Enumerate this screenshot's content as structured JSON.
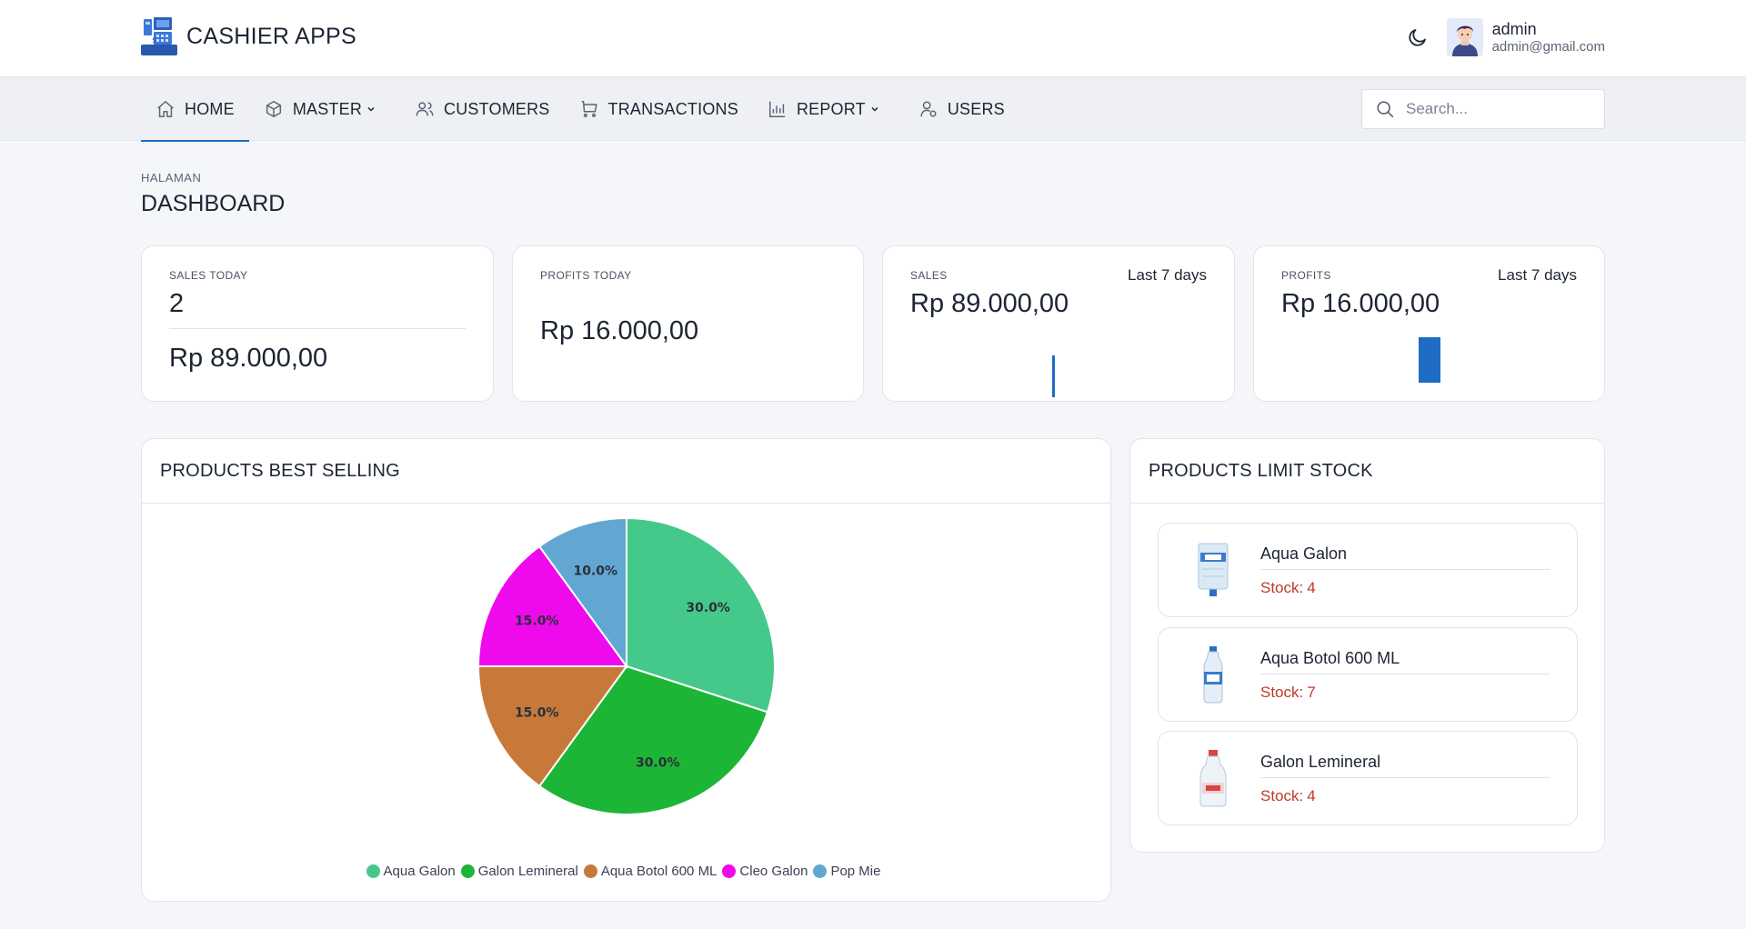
{
  "app": {
    "name": "CASHIER APPS",
    "logo_icon": "cash-register-icon",
    "theme_toggle_icon": "moon-icon"
  },
  "user": {
    "name": "admin",
    "email": "admin@gmail.com"
  },
  "nav": {
    "items": [
      {
        "label": "HOME",
        "icon": "home-icon",
        "active": true
      },
      {
        "label": "MASTER",
        "icon": "box-icon",
        "dropdown": true
      },
      {
        "label": "CUSTOMERS",
        "icon": "users-icon"
      },
      {
        "label": "TRANSACTIONS",
        "icon": "cart-icon"
      },
      {
        "label": "REPORT",
        "icon": "chart-icon",
        "dropdown": true
      },
      {
        "label": "USERS",
        "icon": "user-icon"
      }
    ],
    "search_placeholder": "Search..."
  },
  "page": {
    "pretitle": "HALAMAN",
    "title": "DASHBOARD"
  },
  "stats": {
    "sales_today": {
      "label": "SALES TODAY",
      "count": "2",
      "amount": "Rp 89.000,00"
    },
    "profits_today": {
      "label": "PROFITS TODAY",
      "amount": "Rp 16.000,00"
    },
    "sales_week": {
      "label": "SALES",
      "range": "Last 7 days",
      "amount": "Rp 89.000,00"
    },
    "profits_week": {
      "label": "PROFITS",
      "range": "Last 7 days",
      "amount": "Rp 16.000,00"
    }
  },
  "best_selling": {
    "title": "PRODUCTS BEST SELLING"
  },
  "chart_data": {
    "type": "pie",
    "title": "",
    "categories": [
      "Aqua Galon",
      "Galon Lemineral",
      "Aqua Botol 600 ML",
      "Cleo Galon",
      "Pop Mie"
    ],
    "values": [
      30.0,
      30.0,
      15.0,
      15.0,
      10.0
    ],
    "labels": [
      "30.0%",
      "30.0%",
      "15.0%",
      "15.0%",
      "10.0%"
    ],
    "colors": [
      "#45c98a",
      "#1db535",
      "#c7793a",
      "#ee0aec",
      "#62a7d2"
    ],
    "legend": "bottom"
  },
  "limit_stock": {
    "title": "PRODUCTS LIMIT STOCK",
    "stock_prefix": "Stock:",
    "items": [
      {
        "name": "Aqua Galon",
        "stock": "4",
        "image": "water-gallon-icon"
      },
      {
        "name": "Aqua Botol 600 ML",
        "stock": "7",
        "image": "water-bottle-icon"
      },
      {
        "name": "Galon Lemineral",
        "stock": "4",
        "image": "mineral-bottle-icon"
      }
    ]
  }
}
